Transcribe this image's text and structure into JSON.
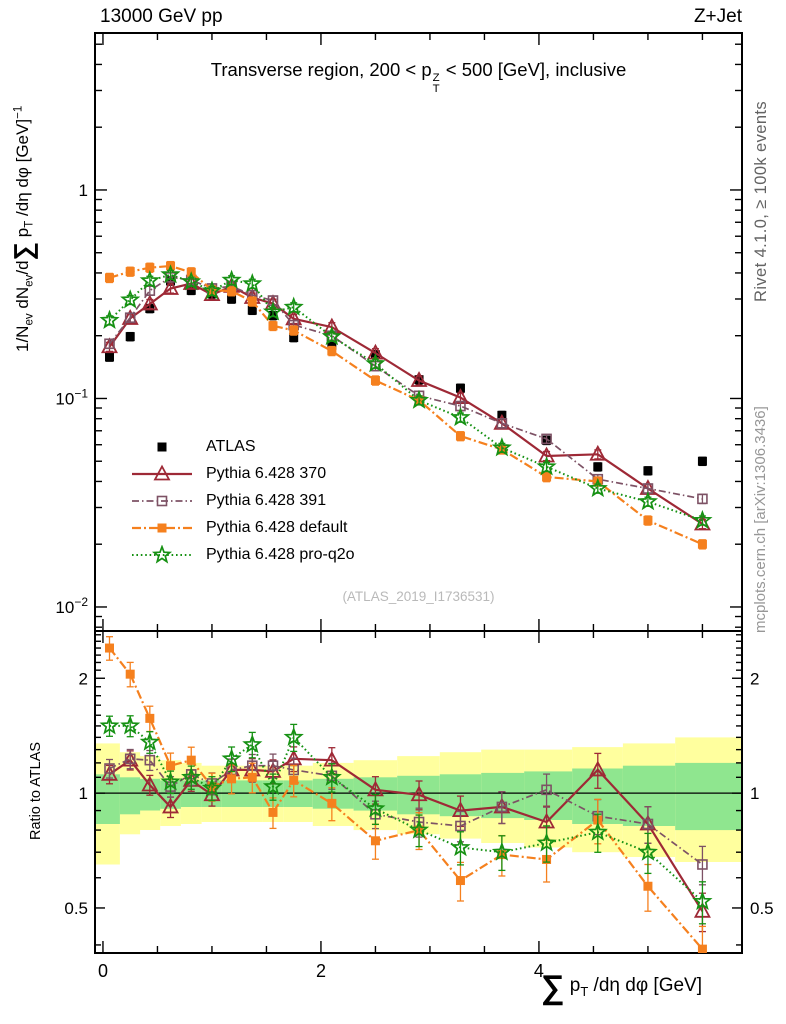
{
  "header": {
    "left": "13000 GeV pp",
    "right": "Z+Jet"
  },
  "title": {
    "pre": "Transverse region, 200 < p",
    "sup": "Z",
    "sub": "T",
    "post": " < 500 [GeV], inclusive"
  },
  "watermark": "(ATLAS_2019_I1736531)",
  "side_notes": {
    "right_top": "Rivet 4.1.0, ≥ 100k events",
    "right_bottom": "mcplots.cern.ch [arXiv:1306.3436]"
  },
  "ylabel_main": {
    "a": "1/N",
    "a_sub": "ev",
    "b": " dN",
    "b_sub": "ev",
    "c": "/d",
    "sigma": "∑",
    "d": " p",
    "d_sub": "T",
    "e": " /dη dφ  [GeV]",
    "e_sup": "−1"
  },
  "ylabel_ratio": "Ratio to ATLAS",
  "xlabel": {
    "sigma": "∑",
    "a": " p",
    "a_sub": "T",
    "b": " /dη dφ [GeV]"
  },
  "chart_data": {
    "type": "scatter-line",
    "panels": [
      "main (log y)",
      "ratio to ATLAS (log y)"
    ],
    "x": [
      0.06,
      0.25,
      0.43,
      0.62,
      0.81,
      1.0,
      1.18,
      1.37,
      1.56,
      1.75,
      2.1,
      2.5,
      2.9,
      3.28,
      3.66,
      4.07,
      4.54,
      5.0,
      5.5
    ],
    "series": [
      {
        "name": "ATLAS",
        "marker": "square-filled",
        "color": "#000000",
        "line": "none",
        "width": 0,
        "dash": "",
        "err_main": 0.045,
        "err_ratio": 0,
        "main": [
          0.158,
          0.198,
          0.27,
          0.366,
          0.33,
          0.318,
          0.3,
          0.265,
          0.25,
          0.196,
          0.18,
          0.162,
          0.123,
          0.112,
          0.083,
          0.063,
          0.047,
          0.045,
          0.05
        ],
        "ratio": null
      },
      {
        "name": "Pythia 6.428 370",
        "marker": "triangle-open",
        "color": "#9e2936",
        "line": "solid",
        "width": 2.2,
        "dash": "",
        "err_main": 0.05,
        "err_ratio": 0.055,
        "main": [
          0.177,
          0.242,
          0.284,
          0.337,
          0.356,
          0.315,
          0.345,
          0.305,
          0.285,
          0.241,
          0.22,
          0.165,
          0.122,
          0.101,
          0.076,
          0.053,
          0.054,
          0.037,
          0.025
        ],
        "ratio": [
          1.12,
          1.22,
          1.05,
          0.92,
          1.08,
          0.99,
          1.15,
          1.15,
          1.14,
          1.23,
          1.22,
          1.02,
          0.99,
          0.9,
          0.92,
          0.84,
          1.15,
          0.83,
          0.49
        ]
      },
      {
        "name": "Pythia 6.428 391",
        "marker": "square-open",
        "color": "#7d5265",
        "line": "dashdot",
        "width": 1.7,
        "dash": "7,3,1.5,3",
        "err_main": 0.05,
        "err_ratio": 0.055,
        "main": [
          0.183,
          0.244,
          0.329,
          0.381,
          0.37,
          0.337,
          0.345,
          0.313,
          0.295,
          0.225,
          0.2,
          0.143,
          0.103,
          0.092,
          0.076,
          0.064,
          0.041,
          0.037,
          0.033
        ],
        "ratio": [
          1.16,
          1.23,
          1.22,
          1.04,
          1.12,
          1.06,
          1.15,
          1.18,
          1.18,
          1.15,
          1.11,
          0.88,
          0.84,
          0.82,
          0.92,
          1.02,
          0.87,
          0.83,
          0.65
        ]
      },
      {
        "name": "Pythia 6.428 default",
        "marker": "square-filled",
        "color": "#f5801e",
        "line": "dashdot",
        "width": 2.2,
        "dash": "9,3,2,3",
        "err_main": 0.05,
        "err_ratio": 0.07,
        "main": [
          0.379,
          0.406,
          0.424,
          0.432,
          0.403,
          0.331,
          0.327,
          0.292,
          0.223,
          0.212,
          0.169,
          0.122,
          0.098,
          0.066,
          0.057,
          0.042,
          0.04,
          0.026,
          0.02
        ],
        "ratio": [
          2.4,
          2.05,
          1.57,
          1.18,
          1.22,
          1.04,
          1.09,
          1.1,
          0.89,
          1.08,
          0.94,
          0.75,
          0.8,
          0.59,
          0.69,
          0.67,
          0.85,
          0.57,
          0.39
        ]
      },
      {
        "name": "Pythia 6.428 pro-q2o",
        "marker": "star-open",
        "color": "#169113",
        "line": "dotted",
        "width": 2,
        "dash": "1.6,2.8",
        "err_main": 0.05,
        "err_ratio": 0.06,
        "main": [
          0.237,
          0.297,
          0.367,
          0.392,
          0.363,
          0.328,
          0.369,
          0.355,
          0.26,
          0.274,
          0.198,
          0.147,
          0.098,
          0.081,
          0.058,
          0.047,
          0.037,
          0.032,
          0.026
        ],
        "ratio": [
          1.5,
          1.5,
          1.36,
          1.07,
          1.1,
          1.03,
          1.23,
          1.34,
          1.04,
          1.4,
          1.1,
          0.91,
          0.8,
          0.72,
          0.7,
          0.74,
          0.79,
          0.7,
          0.52
        ]
      }
    ],
    "ratio_reference": 1,
    "bands": {
      "colors": {
        "yellow": "#ffff9e",
        "green": "#8fe68f"
      },
      "yellow": [
        [
          0.65,
          1.35
        ],
        [
          0.78,
          1.28
        ],
        [
          0.8,
          1.25
        ],
        [
          0.82,
          1.22
        ],
        [
          0.83,
          1.2
        ],
        [
          0.84,
          1.18
        ],
        [
          0.84,
          1.18
        ],
        [
          0.84,
          1.18
        ],
        [
          0.84,
          1.18
        ],
        [
          0.84,
          1.18
        ],
        [
          0.82,
          1.2
        ],
        [
          0.8,
          1.22
        ],
        [
          0.78,
          1.25
        ],
        [
          0.76,
          1.28
        ],
        [
          0.74,
          1.3
        ],
        [
          0.72,
          1.3
        ],
        [
          0.7,
          1.32
        ],
        [
          0.68,
          1.35
        ],
        [
          0.66,
          1.4
        ]
      ],
      "green": [
        [
          0.83,
          1.12
        ],
        [
          0.88,
          1.1
        ],
        [
          0.9,
          1.09
        ],
        [
          0.91,
          1.08
        ],
        [
          0.92,
          1.08
        ],
        [
          0.92,
          1.08
        ],
        [
          0.92,
          1.08
        ],
        [
          0.92,
          1.08
        ],
        [
          0.92,
          1.08
        ],
        [
          0.92,
          1.08
        ],
        [
          0.91,
          1.09
        ],
        [
          0.9,
          1.1
        ],
        [
          0.88,
          1.11
        ],
        [
          0.87,
          1.12
        ],
        [
          0.86,
          1.13
        ],
        [
          0.85,
          1.14
        ],
        [
          0.83,
          1.16
        ],
        [
          0.82,
          1.18
        ],
        [
          0.8,
          1.2
        ]
      ]
    },
    "axes": {
      "x": {
        "lim": [
          -0.073,
          5.863
        ],
        "major": [
          0,
          2,
          4
        ],
        "tick_labels": [
          "0",
          "2",
          "4"
        ],
        "minor": [
          0.5,
          1,
          1.5,
          2.5,
          3,
          3.5,
          4.5,
          5,
          5.5
        ]
      },
      "main_y": {
        "scale": "log",
        "lim": [
          0.00767,
          5.66
        ],
        "major": [
          1,
          0.1,
          0.01
        ],
        "major_labels": [
          {
            "base": "1",
            "exp": ""
          },
          {
            "base": "10",
            "exp": "−1"
          },
          {
            "base": "10",
            "exp": "−2"
          }
        ],
        "minor": [
          0.008,
          0.009,
          0.02,
          0.03,
          0.04,
          0.05,
          0.06,
          0.07,
          0.08,
          0.09,
          0.2,
          0.3,
          0.4,
          0.5,
          0.6,
          0.7,
          0.8,
          0.9,
          2,
          3,
          4,
          5
        ]
      },
      "ratio_y": {
        "scale": "log",
        "lim": [
          0.381,
          2.66
        ],
        "major": [
          2,
          1,
          0.5
        ],
        "tick_labels": [
          "2",
          "1",
          "0.5"
        ],
        "minor": [
          0.4,
          0.6,
          0.7,
          0.8,
          0.9,
          1.1,
          1.2,
          1.3,
          1.4,
          1.5,
          1.6,
          1.7,
          1.8,
          1.9,
          2.1,
          2.2,
          2.3,
          2.4,
          2.5,
          2.6
        ]
      }
    }
  }
}
